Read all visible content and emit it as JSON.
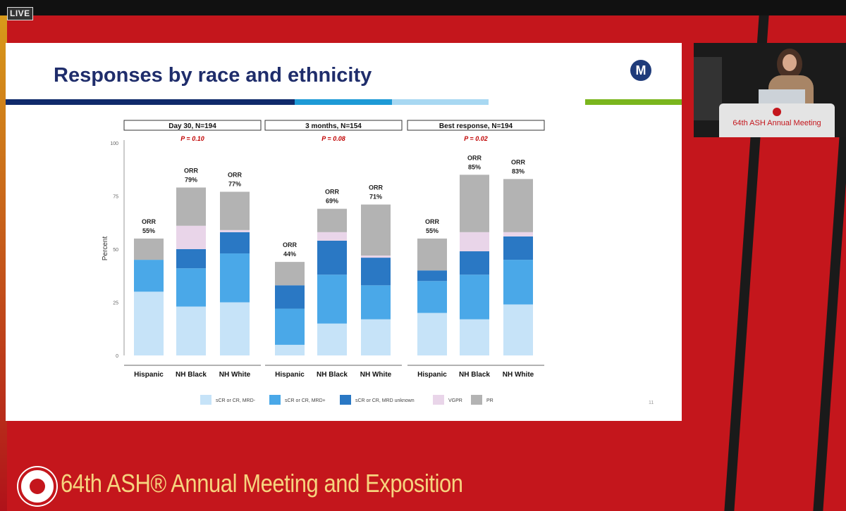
{
  "stream": {
    "live_label": "LIVE"
  },
  "slide": {
    "title": "Responses by race and ethnicity",
    "logo_text": "M",
    "slide_number": "11"
  },
  "video": {
    "podium_text": "64th ASH Annual Meeting"
  },
  "footer": {
    "text": "64th ASH® Annual Meeting and Exposition"
  },
  "colors": {
    "background": "#c4161c",
    "title": "#1f2d6b",
    "footer_text": "#f6d47e",
    "accent_bars": [
      "#102a6b",
      "#1d9ad6",
      "#a8d8f2",
      "#7ab51d"
    ]
  },
  "chart_data": {
    "type": "bar",
    "stacked": true,
    "ylabel": "Percent",
    "ylim": [
      0,
      100
    ],
    "yticks": [
      0,
      25,
      50,
      75,
      100
    ],
    "categories": [
      "Hispanic",
      "NH Black",
      "NH White"
    ],
    "legend": [
      {
        "name": "sCR or CR, MRD-",
        "color": "#c6e3f8"
      },
      {
        "name": "sCR or CR, MRD+",
        "color": "#4aa8e8"
      },
      {
        "name": "sCR or CR, MRD unknown",
        "color": "#2a78c4"
      },
      {
        "name": "VGPR",
        "color": "#e9d5e9"
      },
      {
        "name": "PR",
        "color": "#b3b3b3"
      }
    ],
    "panels": [
      {
        "title": "Day 30, N=194",
        "p_value": "P = 0.10",
        "orr_label": "ORR",
        "bars": [
          {
            "category": "Hispanic",
            "orr": "55%",
            "stack": [
              30,
              15,
              0,
              0,
              10
            ]
          },
          {
            "category": "NH Black",
            "orr": "79%",
            "stack": [
              23,
              18,
              9,
              11,
              18
            ]
          },
          {
            "category": "NH White",
            "orr": "77%",
            "stack": [
              25,
              23,
              10,
              1,
              18
            ]
          }
        ]
      },
      {
        "title": "3 months, N=154",
        "p_value": "P = 0.08",
        "orr_label": "ORR",
        "bars": [
          {
            "category": "Hispanic",
            "orr": "44%",
            "stack": [
              5,
              17,
              11,
              0,
              11
            ]
          },
          {
            "category": "NH Black",
            "orr": "69%",
            "stack": [
              15,
              23,
              16,
              4,
              11
            ]
          },
          {
            "category": "NH White",
            "orr": "71%",
            "stack": [
              17,
              16,
              13,
              1,
              24
            ]
          }
        ]
      },
      {
        "title": "Best response, N=194",
        "p_value": "P = 0.02",
        "orr_label": "ORR",
        "bars": [
          {
            "category": "Hispanic",
            "orr": "55%",
            "stack": [
              20,
              15,
              5,
              0,
              15
            ]
          },
          {
            "category": "NH Black",
            "orr": "85%",
            "stack": [
              17,
              21,
              11,
              9,
              27
            ]
          },
          {
            "category": "NH White",
            "orr": "83%",
            "stack": [
              24,
              21,
              11,
              2,
              25
            ]
          }
        ]
      }
    ]
  }
}
